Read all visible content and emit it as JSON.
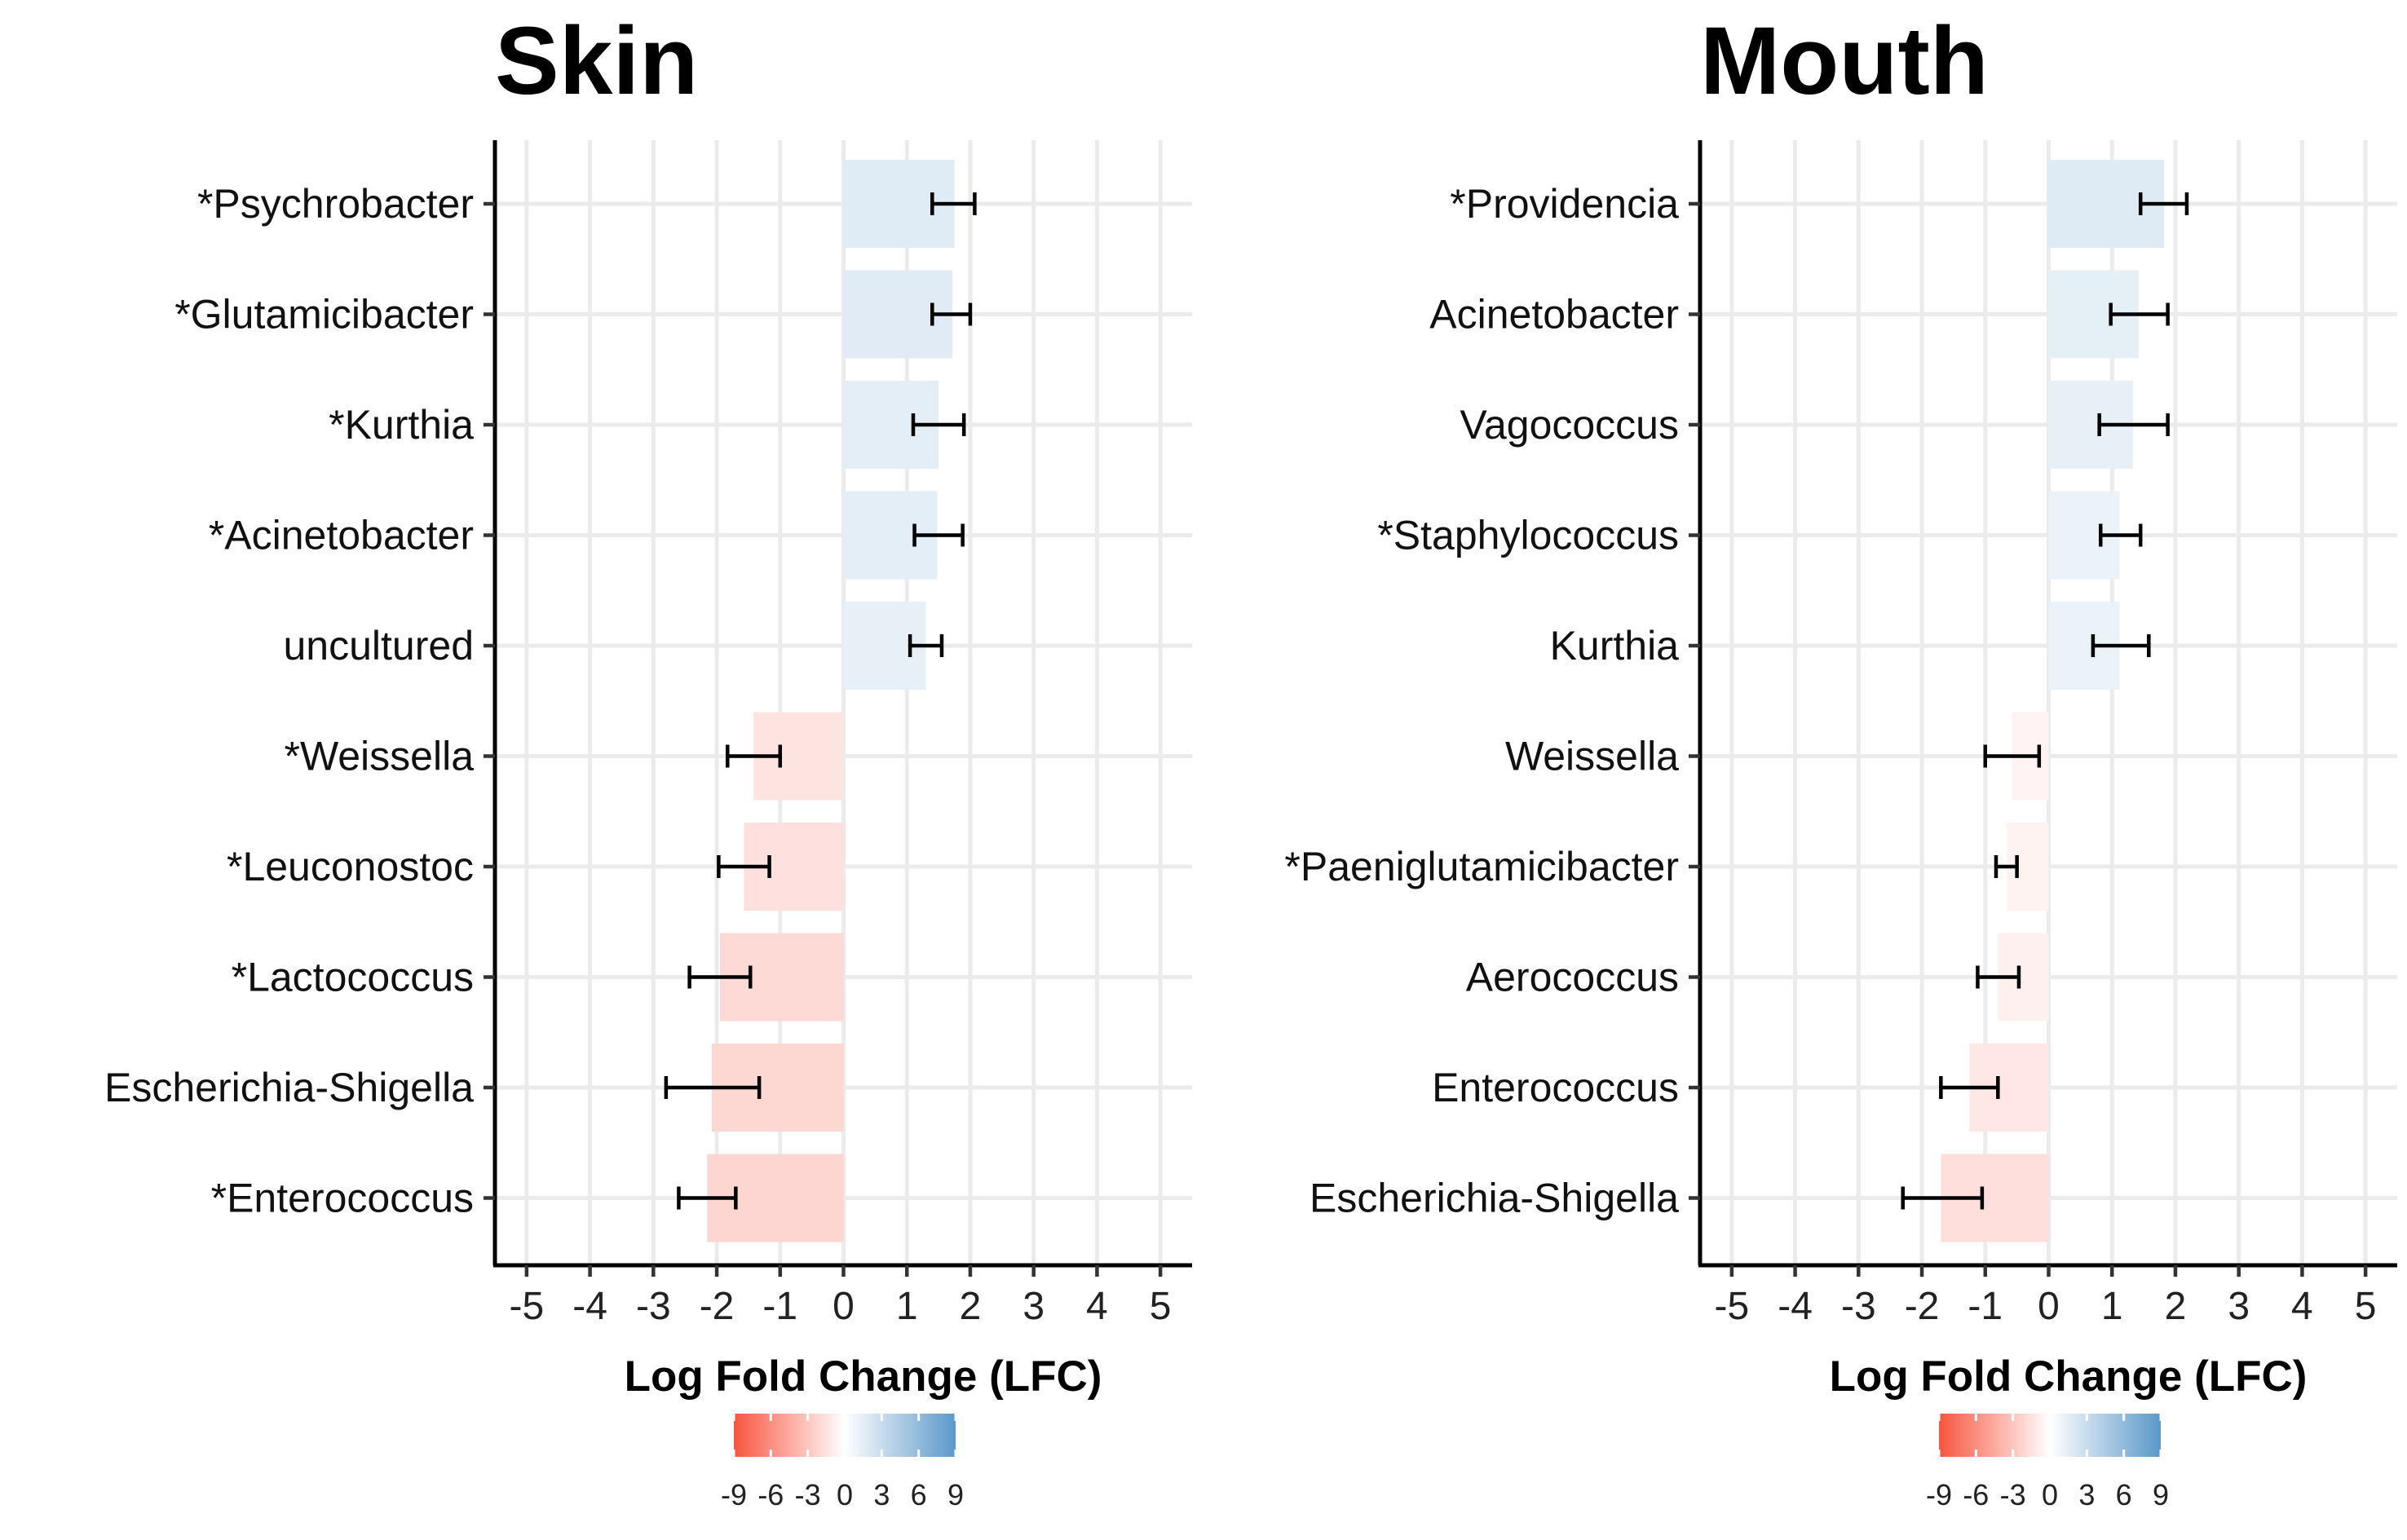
{
  "chart_data": [
    {
      "type": "bar",
      "orientation": "horizontal",
      "title": "Skin",
      "xlabel": "Log Fold Change (LFC)",
      "xlim": [
        -5.5,
        5.5
      ],
      "xticks": [
        "-5",
        "-4",
        "-3",
        "-2",
        "-1",
        "0",
        "1",
        "2",
        "3",
        "4",
        "5"
      ],
      "grid": true,
      "categories": [
        "*Psychrobacter",
        "*Glutamicibacter",
        "*Kurthia",
        "*Acinetobacter",
        "uncultured",
        "*Weissella",
        "*Leuconostoc",
        "*Lactococcus",
        "Escherichia-Shigella",
        "*Enterococcus"
      ],
      "values": [
        1.75,
        1.72,
        1.5,
        1.48,
        1.3,
        -1.42,
        -1.57,
        -1.95,
        -2.08,
        -2.15
      ],
      "error_low": [
        1.4,
        1.4,
        1.1,
        1.12,
        1.05,
        -1.83,
        -1.97,
        -2.43,
        -2.8,
        -2.6
      ],
      "error_high": [
        2.07,
        2.0,
        1.9,
        1.88,
        1.55,
        -1.0,
        -1.17,
        -1.47,
        -1.33,
        -1.7
      ],
      "legend": {
        "position": "bottom",
        "type": "colorbar",
        "ticks": [
          "-9",
          "-6",
          "-3",
          "0",
          "3",
          "6",
          "9"
        ],
        "range": [
          -9,
          9
        ],
        "low_color": "#f8553f",
        "mid_color": "#ffffff",
        "high_color": "#5b98c9"
      }
    },
    {
      "type": "bar",
      "orientation": "horizontal",
      "title": "Mouth",
      "xlabel": "Log Fold Change (LFC)",
      "xlim": [
        -5.5,
        5.5
      ],
      "xticks": [
        "-5",
        "-4",
        "-3",
        "-2",
        "-1",
        "0",
        "1",
        "2",
        "3",
        "4",
        "5"
      ],
      "grid": true,
      "categories": [
        "*Providencia",
        "Acinetobacter",
        "Vagococcus",
        "*Staphylococcus",
        "Kurthia",
        "Weissella",
        "*Paeniglutamicibacter",
        "Aerococcus",
        "Enterococcus",
        "Escherichia-Shigella"
      ],
      "values": [
        1.82,
        1.42,
        1.33,
        1.12,
        1.12,
        -0.58,
        -0.66,
        -0.8,
        -1.25,
        -1.7
      ],
      "error_low": [
        1.45,
        0.98,
        0.8,
        0.82,
        0.7,
        -1.0,
        -0.83,
        -1.12,
        -1.7,
        -2.3
      ],
      "error_high": [
        2.18,
        1.88,
        1.88,
        1.45,
        1.58,
        -0.15,
        -0.5,
        -0.47,
        -0.8,
        -1.05
      ],
      "legend": {
        "position": "bottom",
        "type": "colorbar",
        "ticks": [
          "-9",
          "-6",
          "-3",
          "0",
          "3",
          "6",
          "9"
        ],
        "range": [
          -9,
          9
        ],
        "low_color": "#f8553f",
        "mid_color": "#ffffff",
        "high_color": "#5b98c9"
      }
    }
  ]
}
